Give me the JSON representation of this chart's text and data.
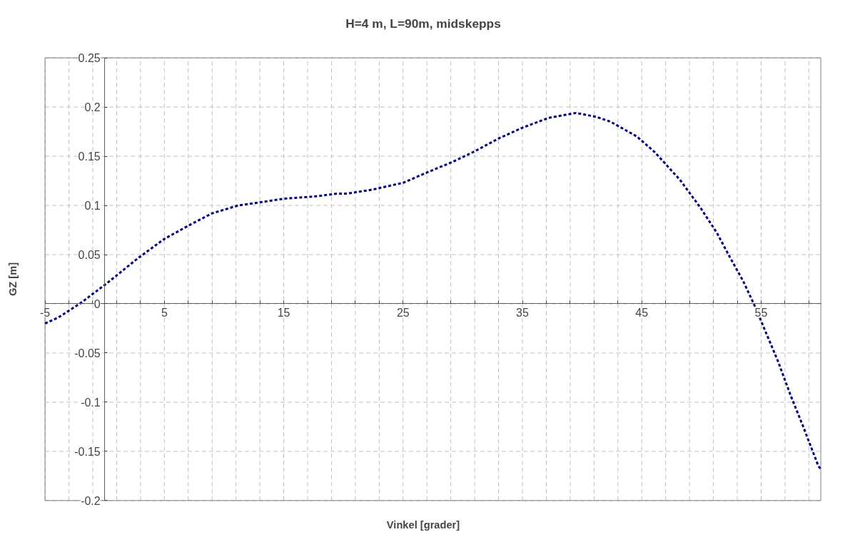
{
  "chart_data": {
    "type": "line",
    "title": "H=4 m, L=90m, midskepps",
    "xlabel": "Vinkel [grader]",
    "ylabel": "GZ [m]",
    "x": [
      -5,
      -3.9,
      -2.1,
      0.2,
      2.75,
      5.0,
      7.1,
      9.0,
      11.2,
      12.4,
      15.1,
      17.5,
      19.5,
      20.3,
      22.4,
      25.0,
      27.1,
      29.1,
      31.0,
      33.0,
      35.0,
      37.2,
      39.5,
      41.2,
      42.4,
      44.6,
      46.1,
      48.2,
      49.9,
      51.3,
      52.4,
      53.5,
      54.5,
      55.5,
      56.4,
      57.5,
      58.5,
      59.8,
      60
    ],
    "series": [
      {
        "color": "#000080",
        "values": [
          -0.02,
          -0.014,
          0.0,
          0.021,
          0.046,
          0.066,
          0.08,
          0.092,
          0.1,
          0.102,
          0.107,
          0.109,
          0.112,
          0.112,
          0.116,
          0.123,
          0.134,
          0.144,
          0.155,
          0.168,
          0.179,
          0.189,
          0.194,
          0.19,
          0.185,
          0.17,
          0.154,
          0.126,
          0.098,
          0.072,
          0.047,
          0.023,
          -0.003,
          -0.032,
          -0.058,
          -0.094,
          -0.124,
          -0.165,
          -0.168
        ]
      }
    ],
    "xlim": [
      -5,
      60
    ],
    "ylim": [
      -0.2,
      0.25
    ],
    "xticks": [
      -5,
      {
        "value": -3,
        "label": null
      },
      {
        "value": -1,
        "label": null
      },
      {
        "value": 1,
        "label": null
      },
      {
        "value": 3,
        "label": null
      },
      5,
      {
        "value": 7,
        "label": null
      },
      {
        "value": 9,
        "label": null
      },
      {
        "value": 11,
        "label": null
      },
      {
        "value": 13,
        "label": null
      },
      15,
      {
        "value": 17,
        "label": null
      },
      {
        "value": 19,
        "label": null
      },
      {
        "value": 21,
        "label": null
      },
      {
        "value": 23,
        "label": null
      },
      25,
      {
        "value": 27,
        "label": null
      },
      {
        "value": 29,
        "label": null
      },
      {
        "value": 31,
        "label": null
      },
      {
        "value": 33,
        "label": null
      },
      35,
      {
        "value": 37,
        "label": null
      },
      {
        "value": 39,
        "label": null
      },
      {
        "value": 41,
        "label": null
      },
      {
        "value": 43,
        "label": null
      },
      45,
      {
        "value": 47,
        "label": null
      },
      {
        "value": 49,
        "label": null
      },
      {
        "value": 51,
        "label": null
      },
      {
        "value": 53,
        "label": null
      },
      55,
      {
        "value": 57,
        "label": null
      },
      {
        "value": 59,
        "label": null
      }
    ],
    "yticks": [
      -0.2,
      -0.15,
      -0.1,
      -0.05,
      0,
      0.05,
      0.1,
      0.15,
      0.2,
      0.25
    ],
    "grid": true,
    "marker": "none",
    "line_style": "dotted"
  }
}
